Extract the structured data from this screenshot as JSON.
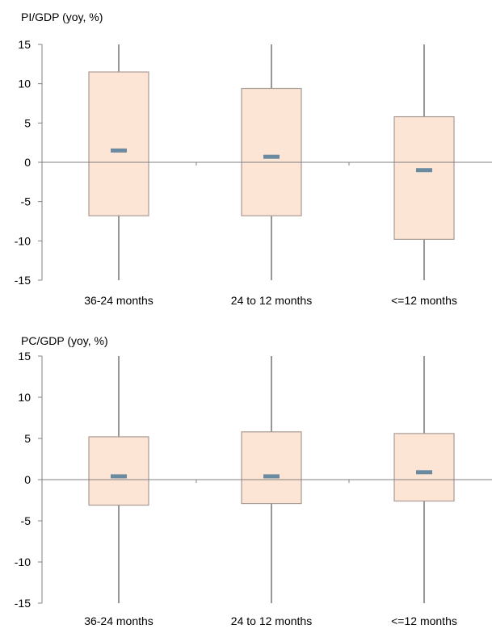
{
  "chart_data": [
    {
      "type": "box",
      "title": "PI/GDP (yoy, %)",
      "categories": [
        "36-24 months",
        "24 to 12 months",
        "<=12 months"
      ],
      "ylim": [
        -15,
        15
      ],
      "yticks": [
        15,
        10,
        5,
        0,
        -5,
        -10,
        -15
      ],
      "grid": false,
      "series": [
        {
          "whisker_low": [
            -15,
            -15,
            -15
          ],
          "box_low": [
            -6.8,
            -6.8,
            -9.8
          ],
          "median": [
            1.5,
            0.7,
            -1.0
          ],
          "box_high": [
            11.5,
            9.4,
            5.8
          ],
          "whisker_high": [
            15,
            15,
            15
          ]
        }
      ]
    },
    {
      "type": "box",
      "title": "PC/GDP (yoy, %)",
      "categories": [
        "36-24 months",
        "24 to 12 months",
        "<=12 months"
      ],
      "ylim": [
        -15,
        15
      ],
      "yticks": [
        15,
        10,
        5,
        0,
        -5,
        -10,
        -15
      ],
      "grid": false,
      "series": [
        {
          "whisker_low": [
            -15,
            -15,
            -15
          ],
          "box_low": [
            -3.1,
            -2.9,
            -2.6
          ],
          "median": [
            0.4,
            0.4,
            0.9
          ],
          "box_high": [
            5.2,
            5.8,
            5.6
          ],
          "whisker_high": [
            15,
            15,
            15
          ]
        }
      ]
    }
  ],
  "colors": {
    "box_fill": "#fde5d5",
    "box_stroke": "#a89a94",
    "median": "#6a8aa0",
    "axis": "#808080",
    "whisker": "#505050"
  }
}
